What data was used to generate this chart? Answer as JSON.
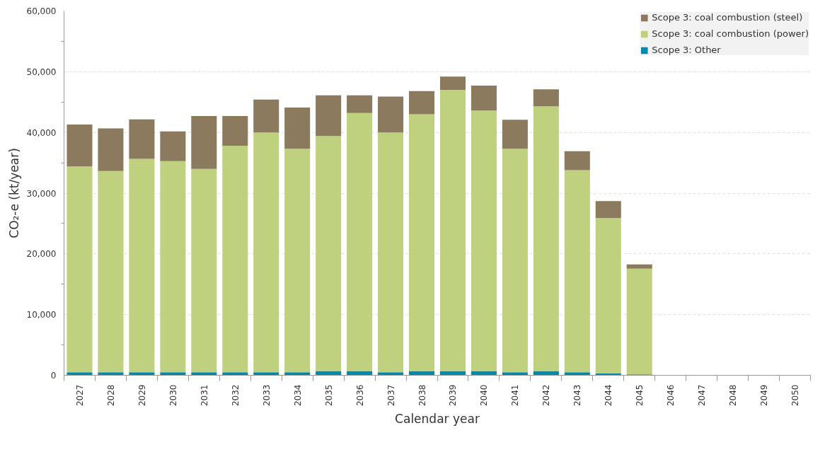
{
  "chart_data": {
    "type": "bar",
    "stacked": true,
    "xlabel": "Calendar year",
    "ylabel": "CO₂-e (kt/year)",
    "categories": [
      "2027",
      "2028",
      "2029",
      "2030",
      "2031",
      "2032",
      "2033",
      "2034",
      "2035",
      "2036",
      "2037",
      "2038",
      "2039",
      "2040",
      "2041",
      "2042",
      "2043",
      "2044",
      "2045",
      "2046",
      "2047",
      "2048",
      "2049",
      "2050"
    ],
    "series": [
      {
        "name": "Scope 3: Other",
        "color": "#0089b0",
        "values": [
          500,
          500,
          500,
          500,
          500,
          500,
          500,
          500,
          700,
          700,
          500,
          700,
          700,
          700,
          500,
          700,
          500,
          300,
          150,
          0,
          0,
          0,
          0,
          0
        ]
      },
      {
        "name": "Scope 3: coal combustion (power)",
        "color": "#bfd17f",
        "values": [
          33900,
          33150,
          35150,
          34770,
          33500,
          37300,
          39500,
          36800,
          38700,
          42500,
          39500,
          42300,
          46300,
          42900,
          36800,
          43600,
          33300,
          25600,
          17400,
          0,
          0,
          0,
          0,
          0
        ]
      },
      {
        "name": "Scope 3: coal combustion (steel)",
        "color": "#8b7a5e",
        "values": [
          6900,
          7000,
          6500,
          4900,
          8700,
          4900,
          5400,
          6800,
          6700,
          2900,
          5900,
          3800,
          2200,
          4100,
          4800,
          2800,
          3100,
          2800,
          700,
          0,
          0,
          0,
          0,
          0
        ]
      }
    ],
    "ylim": [
      0,
      60000
    ],
    "yticks": [
      0,
      {
        "value": 10000,
        "label": "10,000"
      },
      {
        "value": 20000,
        "label": "20,000"
      },
      {
        "value": 30000,
        "label": "30,000"
      },
      {
        "value": 40000,
        "label": "40,000"
      },
      {
        "value": 50000,
        "label": "50,000"
      },
      {
        "value": 60000,
        "label": "60,000"
      }
    ],
    "grid": "y",
    "legend": "top right"
  }
}
